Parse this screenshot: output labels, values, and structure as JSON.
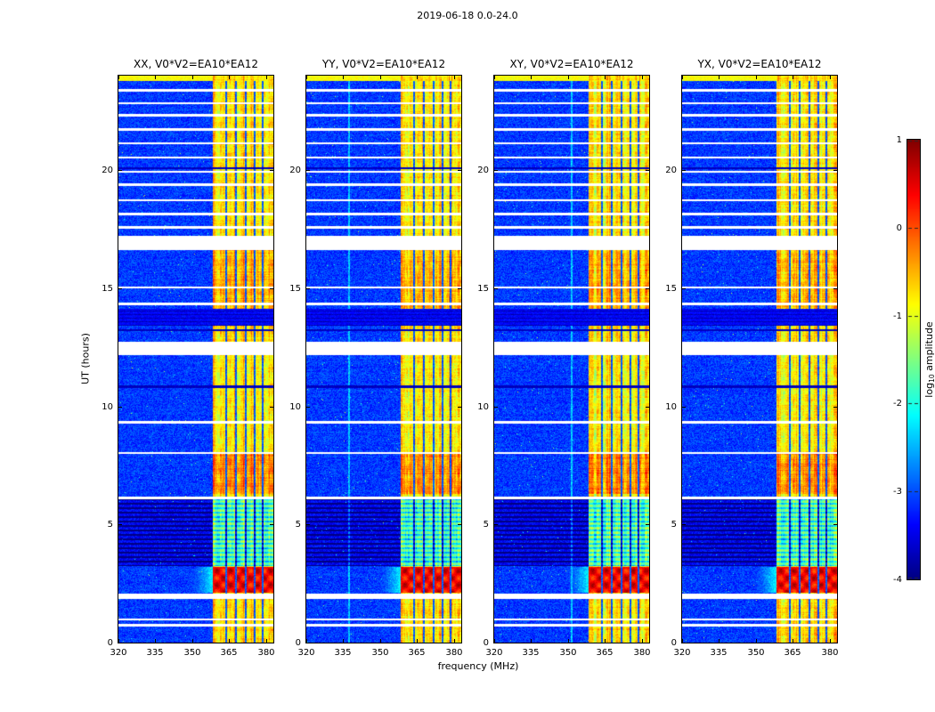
{
  "chart_data": {
    "type": "heatmap",
    "title": "2019-06-18 0.0-24.0",
    "xlabel": "frequency (MHz)",
    "ylabel": "UT (hours)",
    "x_range": [
      320,
      383
    ],
    "y_range": [
      0,
      24
    ],
    "x_ticks": [
      320,
      335,
      350,
      365,
      380
    ],
    "y_ticks": [
      0,
      5,
      10,
      15,
      20
    ],
    "panels": [
      {
        "title": "XX, V0*V2=EA10*EA12",
        "vlines": []
      },
      {
        "title": "YY, V0*V2=EA10*EA12",
        "vlines": [
          337.5
        ]
      },
      {
        "title": "XY, V0*V2=EA10*EA12",
        "vlines": [
          351.5
        ]
      },
      {
        "title": "YX, V0*V2=EA10*EA12",
        "vlines": []
      }
    ],
    "colorbar": {
      "label": "log10 amplitude",
      "label_pre": "log",
      "label_sub": "10",
      "label_post": " amplitude",
      "range": [
        -4,
        1
      ],
      "colormap": "jet",
      "ticks": [
        {
          "label": "1",
          "value": 1
        },
        {
          "label": "0",
          "value": 0
        },
        {
          "label": "-1",
          "value": -1
        },
        {
          "label": "-2",
          "value": -2
        },
        {
          "label": "-3",
          "value": -3
        },
        {
          "label": "-4",
          "value": -4
        }
      ]
    },
    "features": {
      "background_level": -3.2,
      "rfi_band": {
        "f_start": 358.5,
        "f_end": 383,
        "dark_channels": [
          363.8,
          367.8,
          371.8,
          375.3,
          378.6
        ]
      },
      "band_profile": [
        [
          0,
          1.85,
          -0.7
        ],
        [
          2.12,
          3.22,
          0.45
        ],
        [
          3.25,
          6.1,
          -1.2
        ],
        [
          6.3,
          8.0,
          -0.3
        ],
        [
          8.0,
          12.2,
          -0.8
        ],
        [
          12.75,
          13.42,
          -0.7
        ],
        [
          14.15,
          16.62,
          -0.5
        ],
        [
          17.22,
          23.78,
          -0.75
        ],
        [
          23.78,
          24.01,
          -0.7
        ]
      ],
      "data_gaps": [
        [
          1.85,
          2.1
        ],
        [
          12.2,
          12.75
        ],
        [
          16.62,
          17.22
        ]
      ],
      "thin_white_lines": [
        0.75,
        1.0,
        6.15,
        8.05,
        9.35,
        14.35,
        15.05,
        17.6,
        18.15,
        18.75,
        19.4,
        19.95,
        20.55,
        21.15,
        21.75,
        22.35,
        22.85,
        23.4
      ],
      "thin_dark_lines": [
        10.85,
        13.25,
        20.1
      ],
      "dark_band": [
        13.42,
        14.15
      ],
      "striped_dark_region": [
        3.25,
        6.1
      ],
      "hot_blob": {
        "t_start": 2.12,
        "t_end": 3.22,
        "glow_f_start": 348
      },
      "top_bright_strip": [
        23.78,
        24.01
      ]
    }
  }
}
